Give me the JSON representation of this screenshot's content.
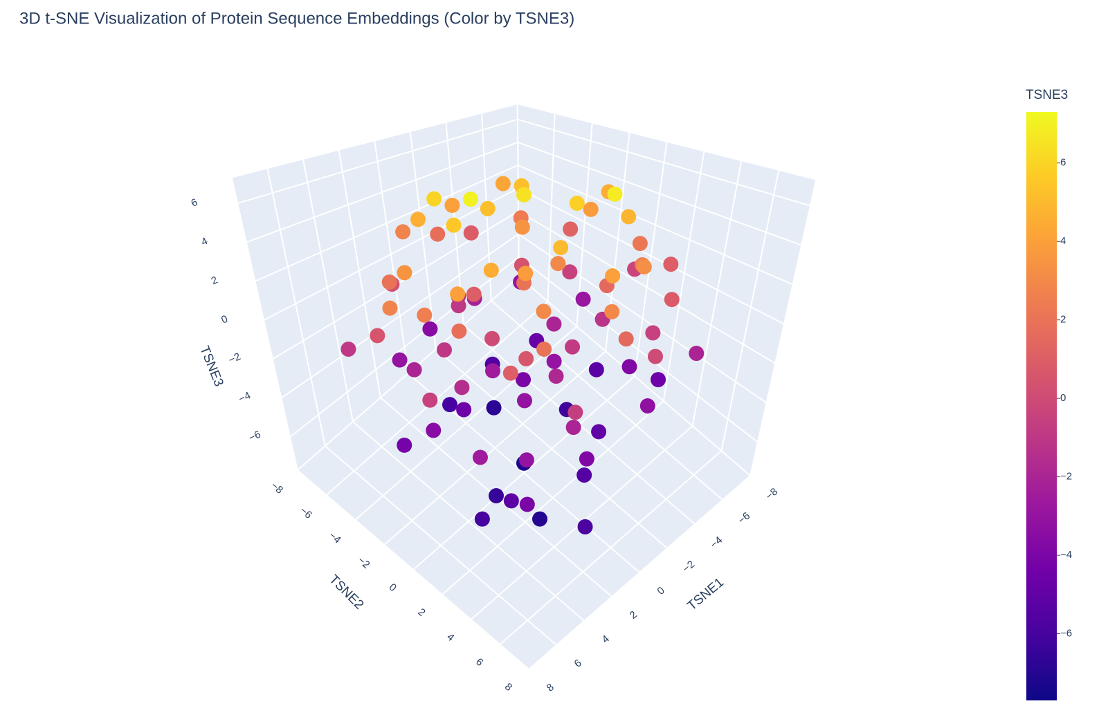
{
  "chart_data": {
    "type": "scatter3d",
    "title": "3D t-SNE Visualization of Protein Sequence Embeddings (Color by TSNE3)",
    "x_label": "TSNE1",
    "y_label": "TSNE2",
    "z_label": "TSNE3",
    "xlim": [
      -8,
      8
    ],
    "ylim": [
      -8,
      8
    ],
    "zlim": [
      -7.7,
      7.3
    ],
    "xticks": [
      {
        "value": -8,
        "label": "−8"
      },
      {
        "value": -6,
        "label": "−6"
      },
      {
        "value": -4,
        "label": "−4"
      },
      {
        "value": -2,
        "label": "−2"
      },
      0,
      2,
      4,
      6,
      8
    ],
    "yticks": [
      {
        "value": -8,
        "label": "−8"
      },
      {
        "value": -6,
        "label": "−6"
      },
      {
        "value": -4,
        "label": "−4"
      },
      {
        "value": -2,
        "label": "−2"
      },
      0,
      2,
      4,
      6,
      8
    ],
    "zticks": [
      {
        "value": -6,
        "label": "−6"
      },
      {
        "value": -4,
        "label": "−4"
      },
      {
        "value": -2,
        "label": "−2"
      },
      0,
      2,
      4,
      6
    ],
    "colorscale": [
      "#0d0887",
      "#46039f",
      "#7201a8",
      "#9c179e",
      "#bd3786",
      "#d8576b",
      "#ed7953",
      "#fb9f3a",
      "#fdca26",
      "#f0f921"
    ],
    "colorbar": {
      "title": "TSNE3",
      "ticks": [
        {
          "value": -6,
          "label": "−6"
        },
        {
          "value": -4,
          "label": "−4"
        },
        {
          "value": -2,
          "label": "−2"
        },
        0,
        2,
        4,
        6
      ]
    },
    "series": [
      {
        "x": [
          0,
          -2,
          3,
          1,
          -3,
          4,
          -4,
          2,
          -1,
          5,
          -5,
          0,
          3,
          -3,
          6,
          -6,
          1,
          4,
          -4,
          2,
          -2,
          0,
          5,
          -5,
          6,
          -6,
          0,
          2,
          -2,
          7,
          -7,
          3,
          -3,
          1,
          -1,
          4,
          -4,
          0,
          2,
          -2,
          6,
          -6,
          3,
          -3,
          5,
          -5,
          1,
          -1,
          2,
          -2,
          4,
          -4,
          0,
          1,
          -3,
          3,
          0,
          2,
          -1,
          5,
          -5,
          6,
          -6,
          1,
          -1,
          6,
          -6,
          2,
          -2,
          3,
          -3,
          4,
          -4,
          0,
          2,
          -2,
          5,
          -5,
          1,
          -1,
          3,
          -3,
          7,
          -7,
          4,
          -4,
          0,
          6,
          -6,
          2,
          -2,
          5,
          -5,
          1,
          -1,
          3,
          -3,
          4,
          -4,
          0
        ],
        "y": [
          0,
          1,
          -1,
          3,
          -3,
          2,
          2,
          -4,
          -5,
          -2,
          -1,
          5,
          4,
          4,
          0,
          1,
          -6,
          -4,
          -4,
          2,
          -2,
          0,
          4,
          4,
          -3,
          -3,
          6,
          -6,
          6,
          1,
          0,
          3,
          -3,
          -2,
          2,
          0,
          1,
          -4,
          5,
          -5,
          3,
          -2,
          -5,
          5,
          -1,
          2,
          1,
          -1,
          -2,
          3,
          3,
          -3,
          4,
          -4,
          0,
          1,
          0,
          3,
          -3,
          5,
          -5,
          -5,
          5,
          6,
          -6,
          2,
          -1,
          -3,
          3,
          0,
          2,
          -3,
          3,
          2,
          0,
          0,
          1,
          -2,
          5,
          -5,
          6,
          -6,
          -1,
          2,
          5,
          -5,
          -2,
          -2,
          3,
          6,
          -4,
          2,
          0,
          -1,
          1,
          -2,
          -1,
          4,
          4,
          -6
        ],
        "z": [
          6.5,
          5.8,
          5.5,
          5,
          5.2,
          4.5,
          4.8,
          4.6,
          4,
          3.5,
          3.8,
          4,
          3,
          3.2,
          2.5,
          2.2,
          2.8,
          2,
          2.4,
          3.8,
          3.5,
          2,
          1,
          0.8,
          0.5,
          1.2,
          1.5,
          0.2,
          0,
          -0.5,
          -0.3,
          0.6,
          0.4,
          1,
          -0.8,
          -1.5,
          -1.2,
          -1,
          -2,
          -2.2,
          -2.5,
          -2.8,
          -3,
          -3.2,
          -3.5,
          -3.8,
          -3,
          -4,
          -4.5,
          -5,
          -5.2,
          -4.8,
          -5.5,
          -6,
          -6.2,
          -6.5,
          -7.2,
          -7,
          -6.8,
          -4,
          -3,
          -1,
          -2,
          3,
          1.8,
          4,
          4.5,
          6,
          6.8,
          7,
          1.5,
          -2,
          2.6,
          -1.8,
          0,
          -3,
          1.8,
          -0.5,
          -3.8,
          -1.5,
          -0.6,
          0.9,
          2.8,
          1,
          2,
          4.2,
          5.2,
          -4.2,
          -4.5,
          -5.8,
          -5.6,
          -6,
          -5.2,
          -2.5,
          3,
          -1,
          -2,
          -3,
          -0.5,
          -3.5
        ]
      }
    ]
  }
}
